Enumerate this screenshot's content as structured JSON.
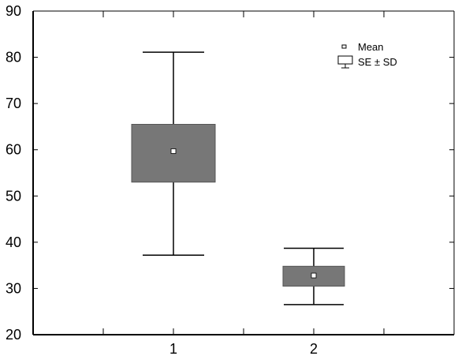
{
  "chart_data": {
    "type": "box",
    "categories": [
      "1",
      "2"
    ],
    "series": [
      {
        "category": "1",
        "mean": 59.7,
        "se_low": 53.0,
        "se_high": 65.5,
        "sd_low": 37.2,
        "sd_high": 81.1
      },
      {
        "category": "2",
        "mean": 32.8,
        "se_low": 30.5,
        "se_high": 34.8,
        "sd_low": 26.5,
        "sd_high": 38.7
      }
    ],
    "ylim": [
      20,
      90
    ],
    "yticks": [
      "20",
      "30",
      "40",
      "50",
      "60",
      "70",
      "80",
      "90"
    ],
    "xlim": [
      0,
      3
    ],
    "grid": false,
    "legend": {
      "position": "top-right",
      "items": [
        {
          "label": "Mean",
          "symbol": "small-white-square"
        },
        {
          "label": "SE ± SD",
          "symbol": "box-whisker"
        }
      ]
    },
    "colors": {
      "box_fill": "#777777",
      "mean_marker": "#ffffff",
      "line": "#000000"
    }
  }
}
